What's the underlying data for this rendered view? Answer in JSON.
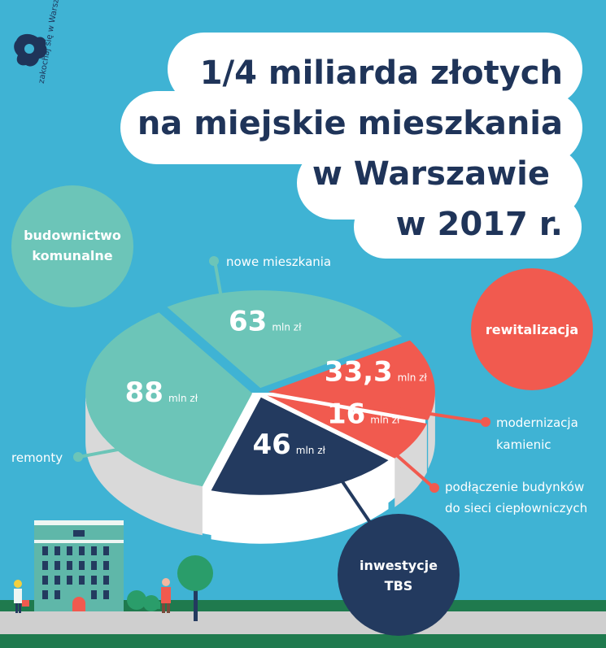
{
  "title_lines": [
    "1/4 miliarda złotych",
    "na miejskie mieszkania",
    "w Warszawie",
    "w 2017 r."
  ],
  "logo_text": "zakochaj się w Warszawie",
  "colors": {
    "background": "#3fb3d4",
    "komunalne": "#6cc5b8",
    "rewitalizacja": "#f15a4f",
    "tbs": "#233a5f",
    "title": "#1f3459",
    "street": "#cfcfcf",
    "grass": "#1f7a4e"
  },
  "categories": {
    "komunalne": "budownictwo komunalne",
    "rewitalizacja": "rewitalizacja",
    "tbs": "inwestycje TBS"
  },
  "chart_data": {
    "type": "pie",
    "unit": "mln zł",
    "slices": [
      {
        "label": "nowe mieszkania",
        "value": 63,
        "display": "63",
        "group": "budownictwo komunalne"
      },
      {
        "label": "modernizacja kamienic",
        "value": 33.3,
        "display": "33,3",
        "group": "rewitalizacja"
      },
      {
        "label": "podłączenie budynków do sieci ciepłowniczych",
        "value": 16,
        "display": "16",
        "group": "rewitalizacja"
      },
      {
        "label": "",
        "value": 46,
        "display": "46",
        "group": "inwestycje TBS"
      },
      {
        "label": "remonty",
        "value": 88,
        "display": "88",
        "group": "budownictwo komunalne"
      }
    ]
  },
  "labels": {
    "nowe_mieszkania": "nowe mieszkania",
    "remonty": "remonty",
    "modernizacja_1": "modernizacja",
    "modernizacja_2": "kamienic",
    "podlaczenie_1": "podłączenie budynków",
    "podlaczenie_2": "do sieci ciepłowniczych",
    "komunalne_1": "budownictwo",
    "komunalne_2": "komunalne",
    "tbs_1": "inwestycje",
    "tbs_2": "TBS"
  }
}
